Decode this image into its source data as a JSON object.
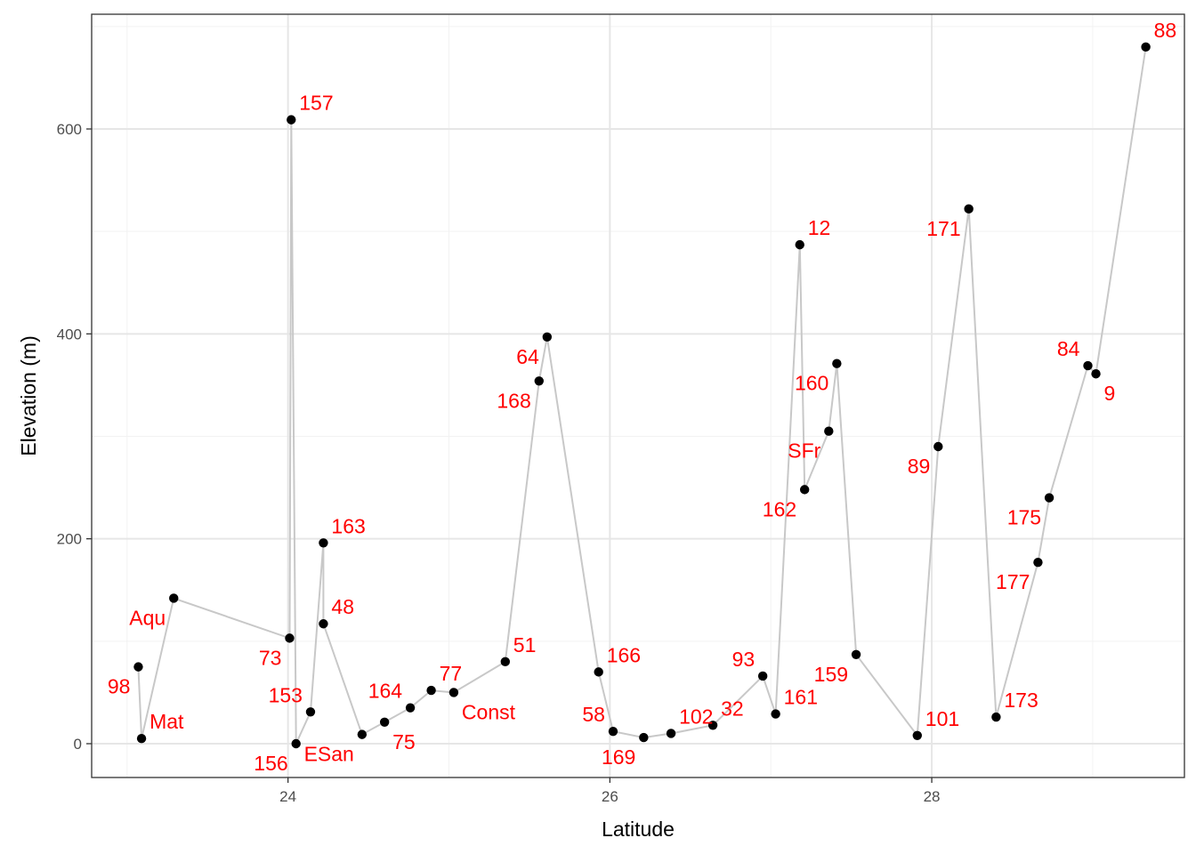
{
  "chart_data": {
    "type": "scatter",
    "xlabel": "Latitude",
    "ylabel": "Elevation (m)",
    "xlim": [
      22.78,
      29.57
    ],
    "ylim": [
      -33,
      712
    ],
    "x_ticks": [
      24,
      26,
      28
    ],
    "y_ticks": [
      0,
      200,
      400,
      600
    ],
    "grid": true,
    "connected_by_line": true,
    "colors": {
      "point": "#000000",
      "line": "#c8c8c8",
      "label": "#ff0000",
      "grid_major": "#e6e6e6",
      "grid_minor": "#f2f2f2"
    },
    "points": [
      {
        "label": "98",
        "x": 23.07,
        "y": 75,
        "label_pos": "left-below"
      },
      {
        "label": "Mat",
        "x": 23.09,
        "y": 5,
        "label_pos": "right-above"
      },
      {
        "label": "Aqu",
        "x": 23.29,
        "y": 142,
        "label_pos": "left-below"
      },
      {
        "label": "73",
        "x": 24.01,
        "y": 103,
        "label_pos": "left-below"
      },
      {
        "label": "157",
        "x": 24.02,
        "y": 609,
        "label_pos": "right-above"
      },
      {
        "label": "156",
        "x": 24.05,
        "y": 0,
        "label_pos": "left-below"
      },
      {
        "label": "153",
        "x": 24.14,
        "y": 31,
        "label_pos": "left-above"
      },
      {
        "label": "163",
        "x": 24.22,
        "y": 196,
        "label_pos": "right-above"
      },
      {
        "label": "48",
        "x": 24.22,
        "y": 117,
        "label_pos": "right-above"
      },
      {
        "label": "ESan",
        "x": 24.46,
        "y": 9,
        "label_pos": "left-below"
      },
      {
        "label": "75",
        "x": 24.6,
        "y": 21,
        "label_pos": "right-below"
      },
      {
        "label": "164",
        "x": 24.76,
        "y": 35,
        "label_pos": "left-above"
      },
      {
        "label": "77",
        "x": 24.89,
        "y": 52,
        "label_pos": "right-above"
      },
      {
        "label": "Const",
        "x": 25.03,
        "y": 50,
        "label_pos": "right-below"
      },
      {
        "label": "51",
        "x": 25.35,
        "y": 80,
        "label_pos": "right-above"
      },
      {
        "label": "168",
        "x": 25.56,
        "y": 354,
        "label_pos": "left-below"
      },
      {
        "label": "64",
        "x": 25.61,
        "y": 397,
        "label_pos": "left-below"
      },
      {
        "label": "166",
        "x": 25.93,
        "y": 70,
        "label_pos": "right-above"
      },
      {
        "label": "58",
        "x": 26.02,
        "y": 12,
        "label_pos": "left-above"
      },
      {
        "label": "169",
        "x": 26.21,
        "y": 6,
        "label_pos": "left-below"
      },
      {
        "label": "102",
        "x": 26.38,
        "y": 10,
        "label_pos": "right-above"
      },
      {
        "label": "32",
        "x": 26.64,
        "y": 18,
        "label_pos": "right-above"
      },
      {
        "label": "93",
        "x": 26.95,
        "y": 66,
        "label_pos": "left-above"
      },
      {
        "label": "161",
        "x": 27.03,
        "y": 29,
        "label_pos": "right-above"
      },
      {
        "label": "12",
        "x": 27.18,
        "y": 487,
        "label_pos": "right-above"
      },
      {
        "label": "162",
        "x": 27.21,
        "y": 248,
        "label_pos": "left-below"
      },
      {
        "label": "SFr",
        "x": 27.36,
        "y": 305,
        "label_pos": "left-below"
      },
      {
        "label": "160",
        "x": 27.41,
        "y": 371,
        "label_pos": "left-below"
      },
      {
        "label": "159",
        "x": 27.53,
        "y": 87,
        "label_pos": "left-below"
      },
      {
        "label": "101",
        "x": 27.91,
        "y": 8,
        "label_pos": "right-above"
      },
      {
        "label": "89",
        "x": 28.04,
        "y": 290,
        "label_pos": "left-below"
      },
      {
        "label": "171",
        "x": 28.23,
        "y": 522,
        "label_pos": "left-below"
      },
      {
        "label": "173",
        "x": 28.4,
        "y": 26,
        "label_pos": "right-above"
      },
      {
        "label": "177",
        "x": 28.66,
        "y": 177,
        "label_pos": "left-below"
      },
      {
        "label": "175",
        "x": 28.73,
        "y": 240,
        "label_pos": "left-below"
      },
      {
        "label": "84",
        "x": 28.97,
        "y": 369,
        "label_pos": "left-above"
      },
      {
        "label": "9",
        "x": 29.02,
        "y": 361,
        "label_pos": "right-below"
      },
      {
        "label": "88",
        "x": 29.33,
        "y": 680,
        "label_pos": "right-above"
      }
    ]
  }
}
